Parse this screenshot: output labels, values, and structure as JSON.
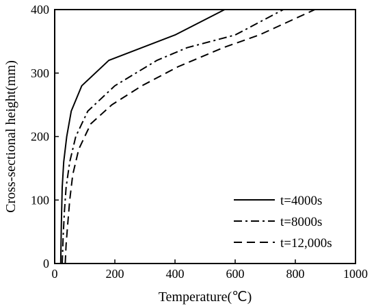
{
  "chart_data": {
    "type": "line",
    "title": "",
    "xlabel": "Temperature(℃)",
    "ylabel": "Cross-sectional height(mm)",
    "xlim": [
      0,
      1000
    ],
    "ylim": [
      0,
      400
    ],
    "xticks": [
      "0",
      "200",
      "400",
      "600",
      "800",
      "1000"
    ],
    "yticks": [
      "0",
      "100",
      "200",
      "300",
      "400"
    ],
    "grid": false,
    "legend_position": "bottom-right",
    "series": [
      {
        "name": "t=4000s",
        "dash": "solid",
        "color": "#000000",
        "x": [
          20,
          22,
          25,
          30,
          40,
          55,
          90,
          180,
          400,
          565
        ],
        "y": [
          0,
          60,
          120,
          160,
          200,
          240,
          280,
          320,
          360,
          400
        ]
      },
      {
        "name": "t=8000s",
        "dash": "dashdot",
        "color": "#000000",
        "x": [
          25,
          28,
          32,
          38,
          50,
          70,
          110,
          200,
          340,
          440,
          600,
          760
        ],
        "y": [
          0,
          40,
          80,
          120,
          160,
          200,
          240,
          280,
          320,
          340,
          360,
          400
        ]
      },
      {
        "name": "t=12,000s",
        "dash": "dashed",
        "color": "#000000",
        "x": [
          35,
          38,
          43,
          50,
          60,
          80,
          120,
          190,
          290,
          410,
          560,
          680,
          865
        ],
        "y": [
          0,
          30,
          60,
          100,
          140,
          180,
          220,
          250,
          280,
          310,
          340,
          360,
          400
        ]
      }
    ]
  }
}
